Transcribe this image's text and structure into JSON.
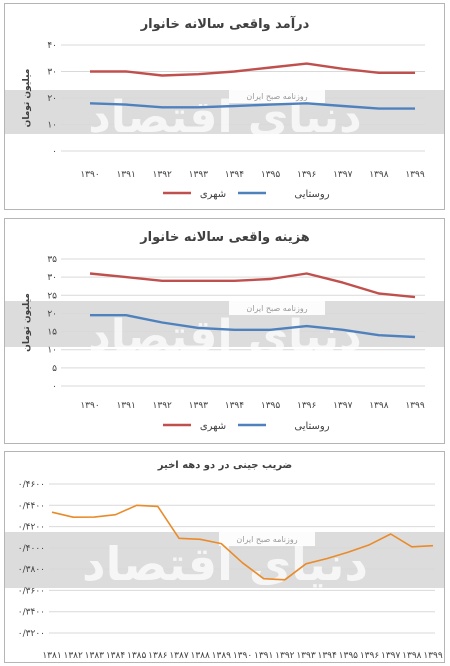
{
  "watermark": {
    "main": "دنیای اقتصاد",
    "sub": "روزنامه صبح ایران"
  },
  "colors": {
    "urban": "#c0504d",
    "rural": "#4f81bd",
    "gini": "#e98b2a",
    "band": "#d6d6d6"
  },
  "chart_data": [
    {
      "type": "line",
      "title": "درآمد واقعی سالانه خانوار",
      "ylabel": "میلیون تومان",
      "categories": [
        "۱۳۹۰",
        "۱۳۹۱",
        "۱۳۹۲",
        "۱۳۹۳",
        "۱۳۹۴",
        "۱۳۹۵",
        "۱۳۹۶",
        "۱۳۹۷",
        "۱۳۹۸",
        "۱۳۹۹"
      ],
      "yticks": [
        {
          "v": 0,
          "t": "۰"
        },
        {
          "v": 10,
          "t": "۱۰"
        },
        {
          "v": 20,
          "t": "۲۰"
        },
        {
          "v": 30,
          "t": "۳۰"
        },
        {
          "v": 40,
          "t": "۴۰"
        }
      ],
      "ylim": [
        0,
        40
      ],
      "grid": true,
      "legend_position": "bottom",
      "series": [
        {
          "name": "شهری",
          "color": "#c0504d",
          "values": [
            30,
            30,
            28.5,
            29,
            30,
            31.5,
            33,
            31,
            29.5,
            29.5
          ]
        },
        {
          "name": "روستایی",
          "color": "#4f81bd",
          "values": [
            18,
            17.5,
            16.5,
            16.5,
            17,
            17.5,
            18,
            17,
            16,
            16
          ]
        }
      ]
    },
    {
      "type": "line",
      "title": "هزینه واقعی سالانه خانوار",
      "ylabel": "میلیون تومان",
      "categories": [
        "۱۳۹۰",
        "۱۳۹۱",
        "۱۳۹۲",
        "۱۳۹۳",
        "۱۳۹۴",
        "۱۳۹۵",
        "۱۳۹۶",
        "۱۳۹۷",
        "۱۳۹۸",
        "۱۳۹۹"
      ],
      "yticks": [
        {
          "v": 0,
          "t": "۰"
        },
        {
          "v": 5,
          "t": "۵"
        },
        {
          "v": 10,
          "t": "۱۰"
        },
        {
          "v": 15,
          "t": "۱۵"
        },
        {
          "v": 20,
          "t": "۲۰"
        },
        {
          "v": 25,
          "t": "۲۵"
        },
        {
          "v": 30,
          "t": "۳۰"
        },
        {
          "v": 35,
          "t": "۳۵"
        }
      ],
      "ylim": [
        0,
        35
      ],
      "grid": true,
      "legend_position": "bottom",
      "series": [
        {
          "name": "شهری",
          "color": "#c0504d",
          "values": [
            31,
            30,
            29,
            29,
            29,
            29.5,
            31,
            28.5,
            25.5,
            24.5
          ]
        },
        {
          "name": "روستایی",
          "color": "#4f81bd",
          "values": [
            19.5,
            19.5,
            17.5,
            16,
            15.5,
            15.5,
            16.5,
            15.5,
            14,
            13.5
          ]
        }
      ]
    },
    {
      "type": "line",
      "title": "ضریب جینی در دو دهه اخیر",
      "categories": [
        "۱۳۸۱",
        "۱۳۸۲",
        "۱۳۸۳",
        "۱۳۸۴",
        "۱۳۸۵",
        "۱۳۸۶",
        "۱۳۸۷",
        "۱۳۸۸",
        "۱۳۸۹",
        "۱۳۹۰",
        "۱۳۹۱",
        "۱۳۹۲",
        "۱۳۹۳",
        "۱۳۹۴",
        "۱۳۹۵",
        "۱۳۹۶",
        "۱۳۹۷",
        "۱۳۹۸",
        "۱۳۹۹"
      ],
      "yticks": [
        {
          "v": 0.32,
          "t": "۰/۳۲۰۰"
        },
        {
          "v": 0.34,
          "t": "۰/۳۴۰۰"
        },
        {
          "v": 0.36,
          "t": "۰/۳۶۰۰"
        },
        {
          "v": 0.38,
          "t": "۰/۳۸۰۰"
        },
        {
          "v": 0.4,
          "t": "۰/۴۰۰۰"
        },
        {
          "v": 0.42,
          "t": "۰/۴۲۰۰"
        },
        {
          "v": 0.44,
          "t": "۰/۴۴۰۰"
        },
        {
          "v": 0.46,
          "t": "۰/۴۶۰۰"
        }
      ],
      "ylim": [
        0.32,
        0.46
      ],
      "grid": true,
      "series": [
        {
          "name": "",
          "color": "#e98b2a",
          "values": [
            0.4335,
            0.4288,
            0.4289,
            0.4312,
            0.44,
            0.439,
            0.409,
            0.408,
            0.404,
            0.386,
            0.371,
            0.37,
            0.385,
            0.39,
            0.396,
            0.403,
            0.413,
            0.401,
            0.402
          ]
        }
      ]
    }
  ]
}
